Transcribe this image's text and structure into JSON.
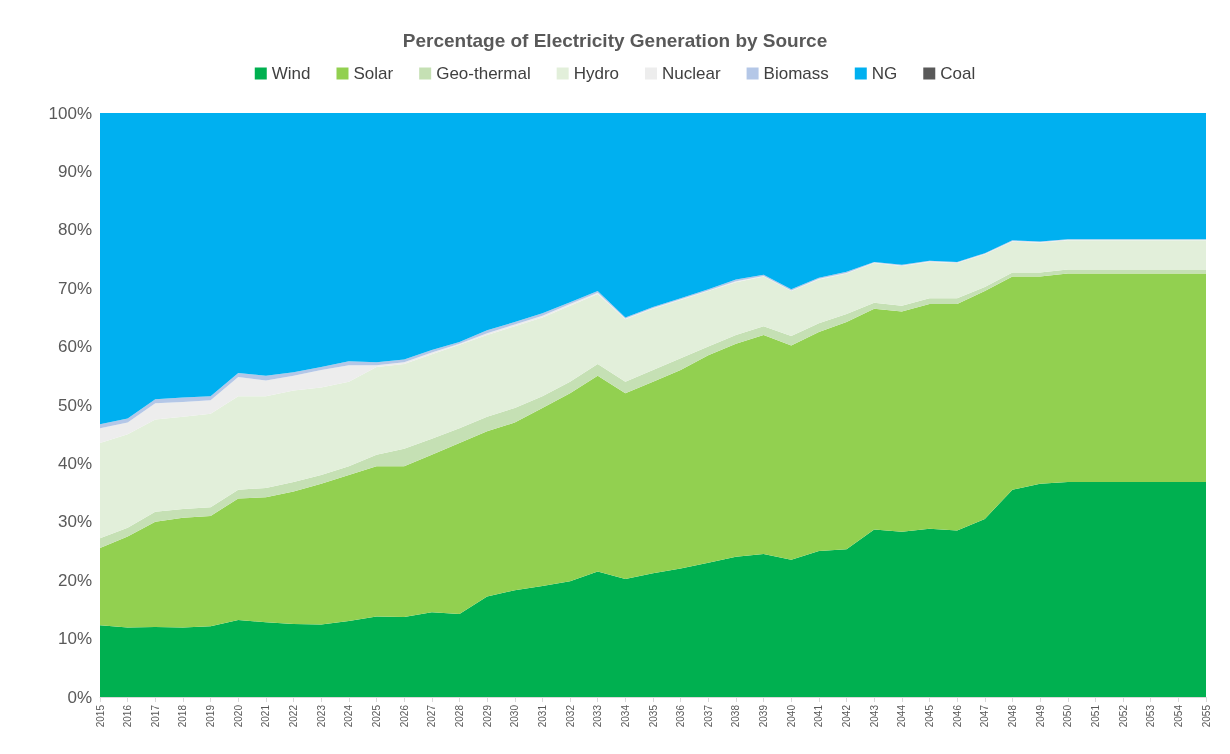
{
  "chart_data": {
    "type": "area",
    "stacked": true,
    "title": "Percentage of Electricity Generation by Source",
    "legend": "top",
    "categories": [
      "2015",
      "2016",
      "2017",
      "2018",
      "2019",
      "2020",
      "2021",
      "2022",
      "2023",
      "2024",
      "2025",
      "2026",
      "2027",
      "2028",
      "2029",
      "2030",
      "2031",
      "2032",
      "2033",
      "2034",
      "2035",
      "2036",
      "2037",
      "2038",
      "2039",
      "2040",
      "2041",
      "2042",
      "2043",
      "2044",
      "2045",
      "2046",
      "2047",
      "2048",
      "2049",
      "2050",
      "2051",
      "2052",
      "2053",
      "2054",
      "2055"
    ],
    "ylim": [
      0,
      100
    ],
    "yticks": [
      {
        "value": 0,
        "label": "0%"
      },
      {
        "value": 10,
        "label": "10%"
      },
      {
        "value": 20,
        "label": "20%"
      },
      {
        "value": 30,
        "label": "30%"
      },
      {
        "value": 40,
        "label": "40%"
      },
      {
        "value": 50,
        "label": "50%"
      },
      {
        "value": 60,
        "label": "60%"
      },
      {
        "value": 70,
        "label": "70%"
      },
      {
        "value": 80,
        "label": "80%"
      },
      {
        "value": 90,
        "label": "90%"
      },
      {
        "value": 100,
        "label": "100%"
      }
    ],
    "series": [
      {
        "name": "Wind",
        "color": "#00b050",
        "values": [
          12.3,
          11.9,
          12,
          11.9,
          12.1,
          13.2,
          12.8,
          12.5,
          12.4,
          13,
          13.8,
          13.7,
          14.5,
          14.2,
          17.2,
          18.3,
          19,
          19.8,
          21.5,
          20.2,
          21.2,
          22,
          23,
          24,
          24.5,
          23.5,
          25,
          25.3,
          28.7,
          28.3,
          28.8,
          28.5,
          30.5,
          35.5,
          36.5,
          36.8,
          36.8,
          36.8,
          36.8,
          36.8,
          36.8
        ]
      },
      {
        "name": "Solar",
        "color": "#92d050",
        "values": [
          13.2,
          15.6,
          18,
          18.8,
          18.9,
          20.8,
          21.4,
          22.7,
          24.1,
          25,
          25.7,
          25.8,
          27,
          29.3,
          28.3,
          28.7,
          30.5,
          32.2,
          33.5,
          31.8,
          32.8,
          34,
          35.5,
          36.5,
          37.5,
          36.7,
          37.5,
          38.9,
          37.8,
          37.7,
          38.5,
          38.8,
          39,
          36.5,
          35.5,
          35.7,
          35.7,
          35.7,
          35.7,
          35.7,
          35.7
        ]
      },
      {
        "name": "Geo-thermal",
        "color": "#c5e0b4",
        "values": [
          1.7,
          1.5,
          1.7,
          1.5,
          1.5,
          1.5,
          1.6,
          1.6,
          1.5,
          1.5,
          2,
          3,
          2.7,
          2.5,
          2.5,
          2.5,
          2,
          2,
          2,
          2,
          2,
          2,
          1.5,
          1.5,
          1.5,
          1.6,
          1.5,
          1.4,
          1,
          1,
          1,
          1,
          0.7,
          0.7,
          0.7,
          0.7,
          0.7,
          0.7,
          0.7,
          0.7,
          0.7
        ]
      },
      {
        "name": "Hydro",
        "color": "#e2efda",
        "values": [
          16.3,
          16,
          15.8,
          15.8,
          16,
          16,
          15.7,
          15.7,
          15,
          14.5,
          15,
          14.5,
          14.5,
          14.3,
          14,
          14,
          13.5,
          13,
          12,
          10.7,
          10.5,
          10,
          9.5,
          9,
          8.5,
          7.7,
          7.5,
          6.9,
          6.8,
          6.8,
          6.2,
          6,
          5.6,
          5.3,
          5.1,
          5,
          5,
          5,
          5,
          5,
          5
        ]
      },
      {
        "name": "Nuclear",
        "color": "#ededed",
        "values": [
          2.5,
          2,
          2.8,
          2.5,
          2.3,
          3.3,
          2.7,
          2.5,
          3,
          2.8,
          0.3,
          0.3,
          0.3,
          0.2,
          0.3,
          0.3,
          0.3,
          0.3,
          0.2,
          0.1,
          0.1,
          0.1,
          0.1,
          0.2,
          0.1,
          0.1,
          0.1,
          0.1,
          0.1,
          0.1,
          0.1,
          0.1,
          0.1,
          0.1,
          0.1,
          0.1,
          0.1,
          0.1,
          0.1,
          0.1,
          0.1
        ]
      },
      {
        "name": "Biomass",
        "color": "#b4c7e7",
        "values": [
          0.7,
          0.7,
          0.7,
          0.8,
          0.7,
          0.7,
          0.8,
          0.6,
          0.5,
          0.7,
          0.5,
          0.5,
          0.4,
          0.3,
          0.5,
          0.4,
          0.4,
          0.3,
          0.3,
          0.2,
          0.2,
          0.2,
          0.2,
          0.3,
          0.2,
          0.2,
          0.2,
          0.2,
          0.1,
          0.1,
          0.1,
          0.1,
          0.1,
          0.1,
          0.1,
          0.1,
          0.1,
          0.1,
          0.1,
          0.1,
          0.1
        ]
      },
      {
        "name": "NG",
        "color": "#00b0f0",
        "values": [
          53.3,
          52.3,
          49,
          48.7,
          48.5,
          44.5,
          45,
          44.4,
          43.5,
          42.5,
          42.7,
          42.2,
          40.6,
          39.2,
          37.2,
          35.8,
          34.3,
          32.4,
          30.5,
          35,
          33.2,
          31.7,
          30.2,
          28.5,
          27.7,
          30.2,
          28.2,
          27.2,
          25.5,
          26,
          25.3,
          25.5,
          24,
          21.8,
          22,
          21.6,
          21.6,
          21.6,
          21.6,
          21.6,
          21.6
        ]
      },
      {
        "name": "Coal",
        "color": "#595959",
        "values": [
          null,
          null,
          null,
          null,
          null,
          null,
          null,
          null,
          null,
          null,
          null,
          null,
          null,
          null,
          null,
          null,
          null,
          null,
          null,
          null,
          null,
          null,
          null,
          null,
          null,
          null,
          null,
          null,
          null,
          null,
          null,
          null,
          null,
          null,
          null,
          null,
          null,
          null,
          null,
          null,
          null
        ]
      }
    ]
  }
}
